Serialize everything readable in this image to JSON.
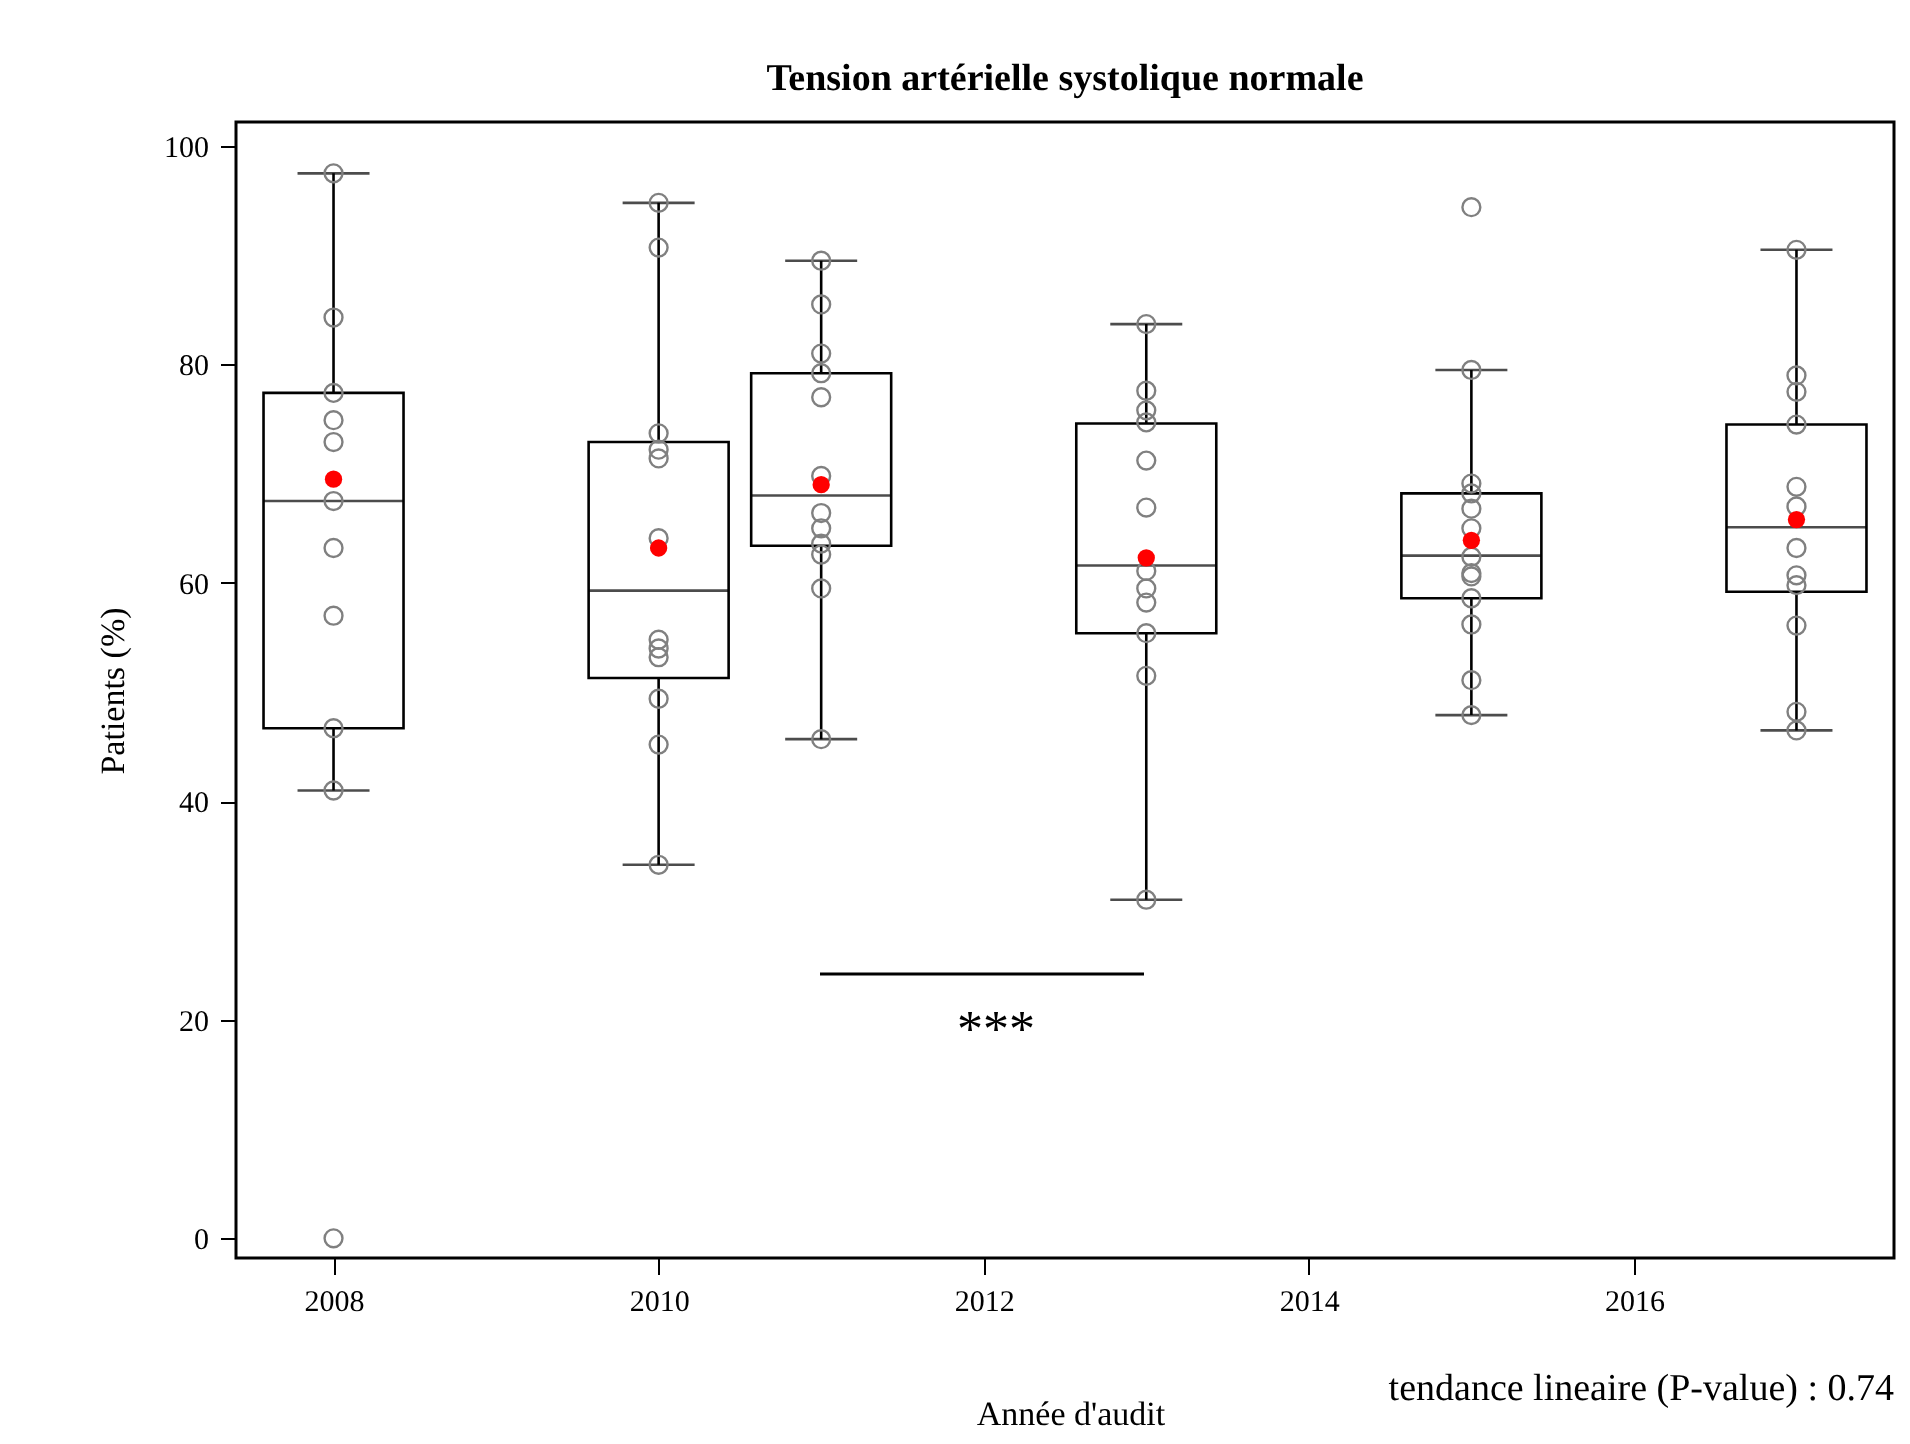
{
  "chart_data": {
    "type": "box",
    "title": "Tension artérielle systolique normale",
    "xlabel": "Année d'audit",
    "ylabel": "Patients (%)",
    "x": [
      2008,
      2010,
      2011,
      2013,
      2015,
      2017
    ],
    "boxes": [
      {
        "low": 41.0,
        "q1": 46.7,
        "median": 67.5,
        "q3": 77.4,
        "high": 97.5,
        "mean": 69.5
      },
      {
        "low": 34.2,
        "q1": 51.3,
        "median": 59.3,
        "q3": 72.9,
        "high": 94.8,
        "mean": 63.2
      },
      {
        "low": 45.7,
        "q1": 63.4,
        "median": 68.0,
        "q3": 79.2,
        "high": 89.5,
        "mean": 69.0
      },
      {
        "low": 31.0,
        "q1": 55.4,
        "median": 61.6,
        "q3": 74.6,
        "high": 83.7,
        "mean": 62.3
      },
      {
        "low": 47.9,
        "q1": 58.6,
        "median": 62.5,
        "q3": 68.2,
        "high": 79.5,
        "mean": 63.9
      },
      {
        "low": 46.5,
        "q1": 59.2,
        "median": 65.1,
        "q3": 74.5,
        "high": 90.5,
        "mean": 65.8
      }
    ],
    "series": [
      {
        "type": "scatter",
        "color": "#808080",
        "marker": "circle",
        "x": [
          2008,
          2008,
          2008,
          2008,
          2008,
          2008,
          2008,
          2008,
          2008,
          2008,
          2008,
          2010,
          2010,
          2010,
          2010,
          2010,
          2010,
          2010,
          2010,
          2010,
          2010,
          2010,
          2010,
          2011,
          2011,
          2011,
          2011,
          2011,
          2011,
          2011,
          2011,
          2011,
          2011,
          2011,
          2011,
          2013,
          2013,
          2013,
          2013,
          2013,
          2013,
          2013,
          2013,
          2013,
          2013,
          2013,
          2013,
          2015,
          2015,
          2015,
          2015,
          2015,
          2015,
          2015,
          2015,
          2015,
          2015,
          2015,
          2015,
          2015,
          2017,
          2017,
          2017,
          2017,
          2017,
          2017,
          2017,
          2017,
          2017,
          2017,
          2017,
          2017
        ],
        "values": [
          97.5,
          84.3,
          77.4,
          74.9,
          72.9,
          67.5,
          63.2,
          57.0,
          46.7,
          41.0,
          0,
          94.8,
          90.7,
          73.7,
          72.2,
          71.4,
          64.1,
          54.8,
          54.0,
          53.2,
          49.4,
          45.2,
          34.2,
          89.5,
          85.5,
          81.0,
          79.2,
          77.0,
          69.8,
          66.4,
          65.0,
          63.6,
          62.6,
          59.5,
          45.7,
          83.7,
          77.6,
          75.8,
          74.7,
          71.2,
          66.9,
          61.1,
          59.5,
          58.2,
          55.4,
          51.5,
          31.0,
          94.4,
          79.5,
          69.1,
          68.2,
          66.8,
          65.0,
          62.4,
          60.9,
          60.6,
          58.6,
          56.2,
          51.1,
          47.9,
          90.5,
          79.0,
          77.5,
          74.5,
          68.8,
          67.0,
          63.2,
          60.7,
          59.8,
          56.1,
          48.2,
          46.5
        ]
      }
    ],
    "xlim": [
      2007.4,
      2017.6
    ],
    "xticks": [
      2008,
      2010,
      2012,
      2014,
      2016
    ],
    "ylim": [
      -1.8,
      102.2
    ],
    "yticks": [
      0,
      20,
      40,
      60,
      80,
      100
    ],
    "annotations": [
      "***",
      "tendance lineaire (P-value) : 0.74"
    ],
    "grid": false
  }
}
